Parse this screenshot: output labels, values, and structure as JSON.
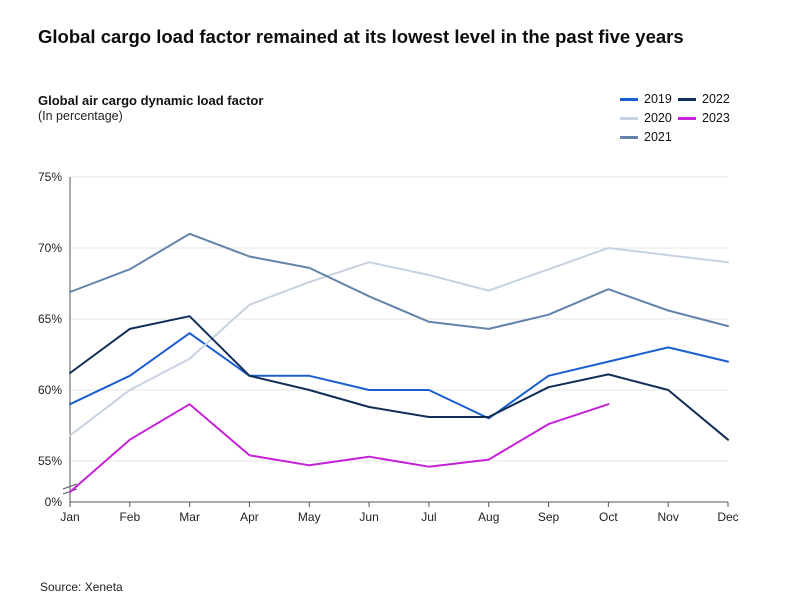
{
  "title": "Global cargo load factor remained at its lowest level in the past five years",
  "subtitle": "Global air cargo dynamic load factor",
  "unit_note": "(In percentage)",
  "source": "Source: Xeneta",
  "chart_data": {
    "type": "line",
    "title": "Global cargo load factor remained at its lowest level in the past five years",
    "subtitle": "Global air cargo dynamic load factor",
    "ylabel": "(In percentage)",
    "xlabel": "",
    "categories": [
      "Jan",
      "Feb",
      "Mar",
      "Apr",
      "May",
      "Jun",
      "Jul",
      "Aug",
      "Sep",
      "Oct",
      "Nov",
      "Dec"
    ],
    "y_ticks": [
      "75%",
      "70%",
      "65%",
      "60%",
      "55%",
      "0%"
    ],
    "ylim": [
      55,
      75
    ],
    "axis_break": "between 0% and 55%",
    "grid": "horizontal",
    "legend_position": "top-right",
    "series": [
      {
        "name": "2019",
        "color": "#1a5fd0",
        "values": [
          59,
          61,
          64,
          61,
          61,
          60,
          60,
          58,
          61,
          62,
          63,
          62
        ]
      },
      {
        "name": "2020",
        "color": "#c7d2e2",
        "values": [
          56.8,
          60,
          62.2,
          66,
          67.6,
          69,
          68.1,
          67,
          68.5,
          70,
          69.5,
          69
        ]
      },
      {
        "name": "2021",
        "color": "#6483aa",
        "values": [
          66.9,
          68.5,
          71,
          69.4,
          68.6,
          66.6,
          64.8,
          64.3,
          65.3,
          67.1,
          65.6,
          64.5
        ]
      },
      {
        "name": "2022",
        "color": "#122e57",
        "values": [
          61.2,
          64.3,
          65.2,
          61,
          60,
          58.8,
          58.1,
          58.1,
          60.2,
          61.1,
          60,
          56.5
        ]
      },
      {
        "name": "2023",
        "color": "#c521d8",
        "values": [
          null,
          56.5,
          59,
          55.4,
          54.7,
          55.3,
          54.6,
          55.1,
          57.6,
          59,
          null,
          null
        ],
        "jan_value_below_axis_break": true
      }
    ]
  }
}
